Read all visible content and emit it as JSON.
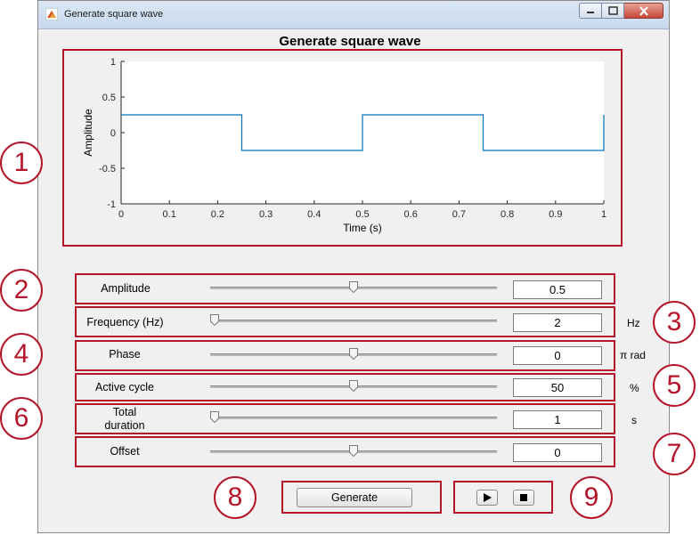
{
  "window": {
    "title": "Generate square wave"
  },
  "plot": {
    "title": "Generate square wave",
    "ylabel": "Amplitude",
    "xlabel": "Time (s)",
    "xticks": [
      "0",
      "0.1",
      "0.2",
      "0.3",
      "0.4",
      "0.5",
      "0.6",
      "0.7",
      "0.8",
      "0.9",
      "1"
    ],
    "yticks": [
      "1",
      "0.5",
      "0",
      "-0.5",
      "-1"
    ],
    "line_color": "#0072bd"
  },
  "chart_data": {
    "type": "line",
    "x": [
      0,
      0.25,
      0.25,
      0.5,
      0.5,
      0.75,
      0.75,
      1,
      1
    ],
    "series": [
      {
        "values": [
          0.25,
          0.25,
          -0.25,
          -0.25,
          0.25,
          0.25,
          -0.25,
          -0.25,
          0.25
        ]
      }
    ],
    "xlim": [
      0,
      1
    ],
    "ylim": [
      -1,
      1
    ],
    "xlabel": "Time (s)",
    "ylabel": "Amplitude",
    "title": "Generate square wave"
  },
  "controls": {
    "amplitude": {
      "label": "Amplitude",
      "value": "0.5",
      "level": 0.5
    },
    "frequency": {
      "label": "Frequency (Hz)",
      "value": "2",
      "unit": "Hz",
      "level": 0.0
    },
    "phase": {
      "label": "Phase",
      "value": "0",
      "unit": "π rad",
      "level": 0.5
    },
    "active_cycle": {
      "label": "Active cycle",
      "value": "50",
      "unit": "%",
      "level": 0.5
    },
    "total_duration": {
      "label_line1": "Total",
      "label_line2": "duration",
      "value": "1",
      "unit": "s",
      "level": 0.0
    },
    "offset": {
      "label": "Offset",
      "value": "0",
      "level": 0.5
    }
  },
  "buttons": {
    "generate": "Generate",
    "play_icon": "play-icon",
    "stop_icon": "stop-icon"
  },
  "badges": [
    "1",
    "2",
    "3",
    "4",
    "5",
    "6",
    "7",
    "8",
    "9"
  ],
  "colors": {
    "annotation_red": "#b5152a",
    "plot_line": "#0072bd"
  }
}
